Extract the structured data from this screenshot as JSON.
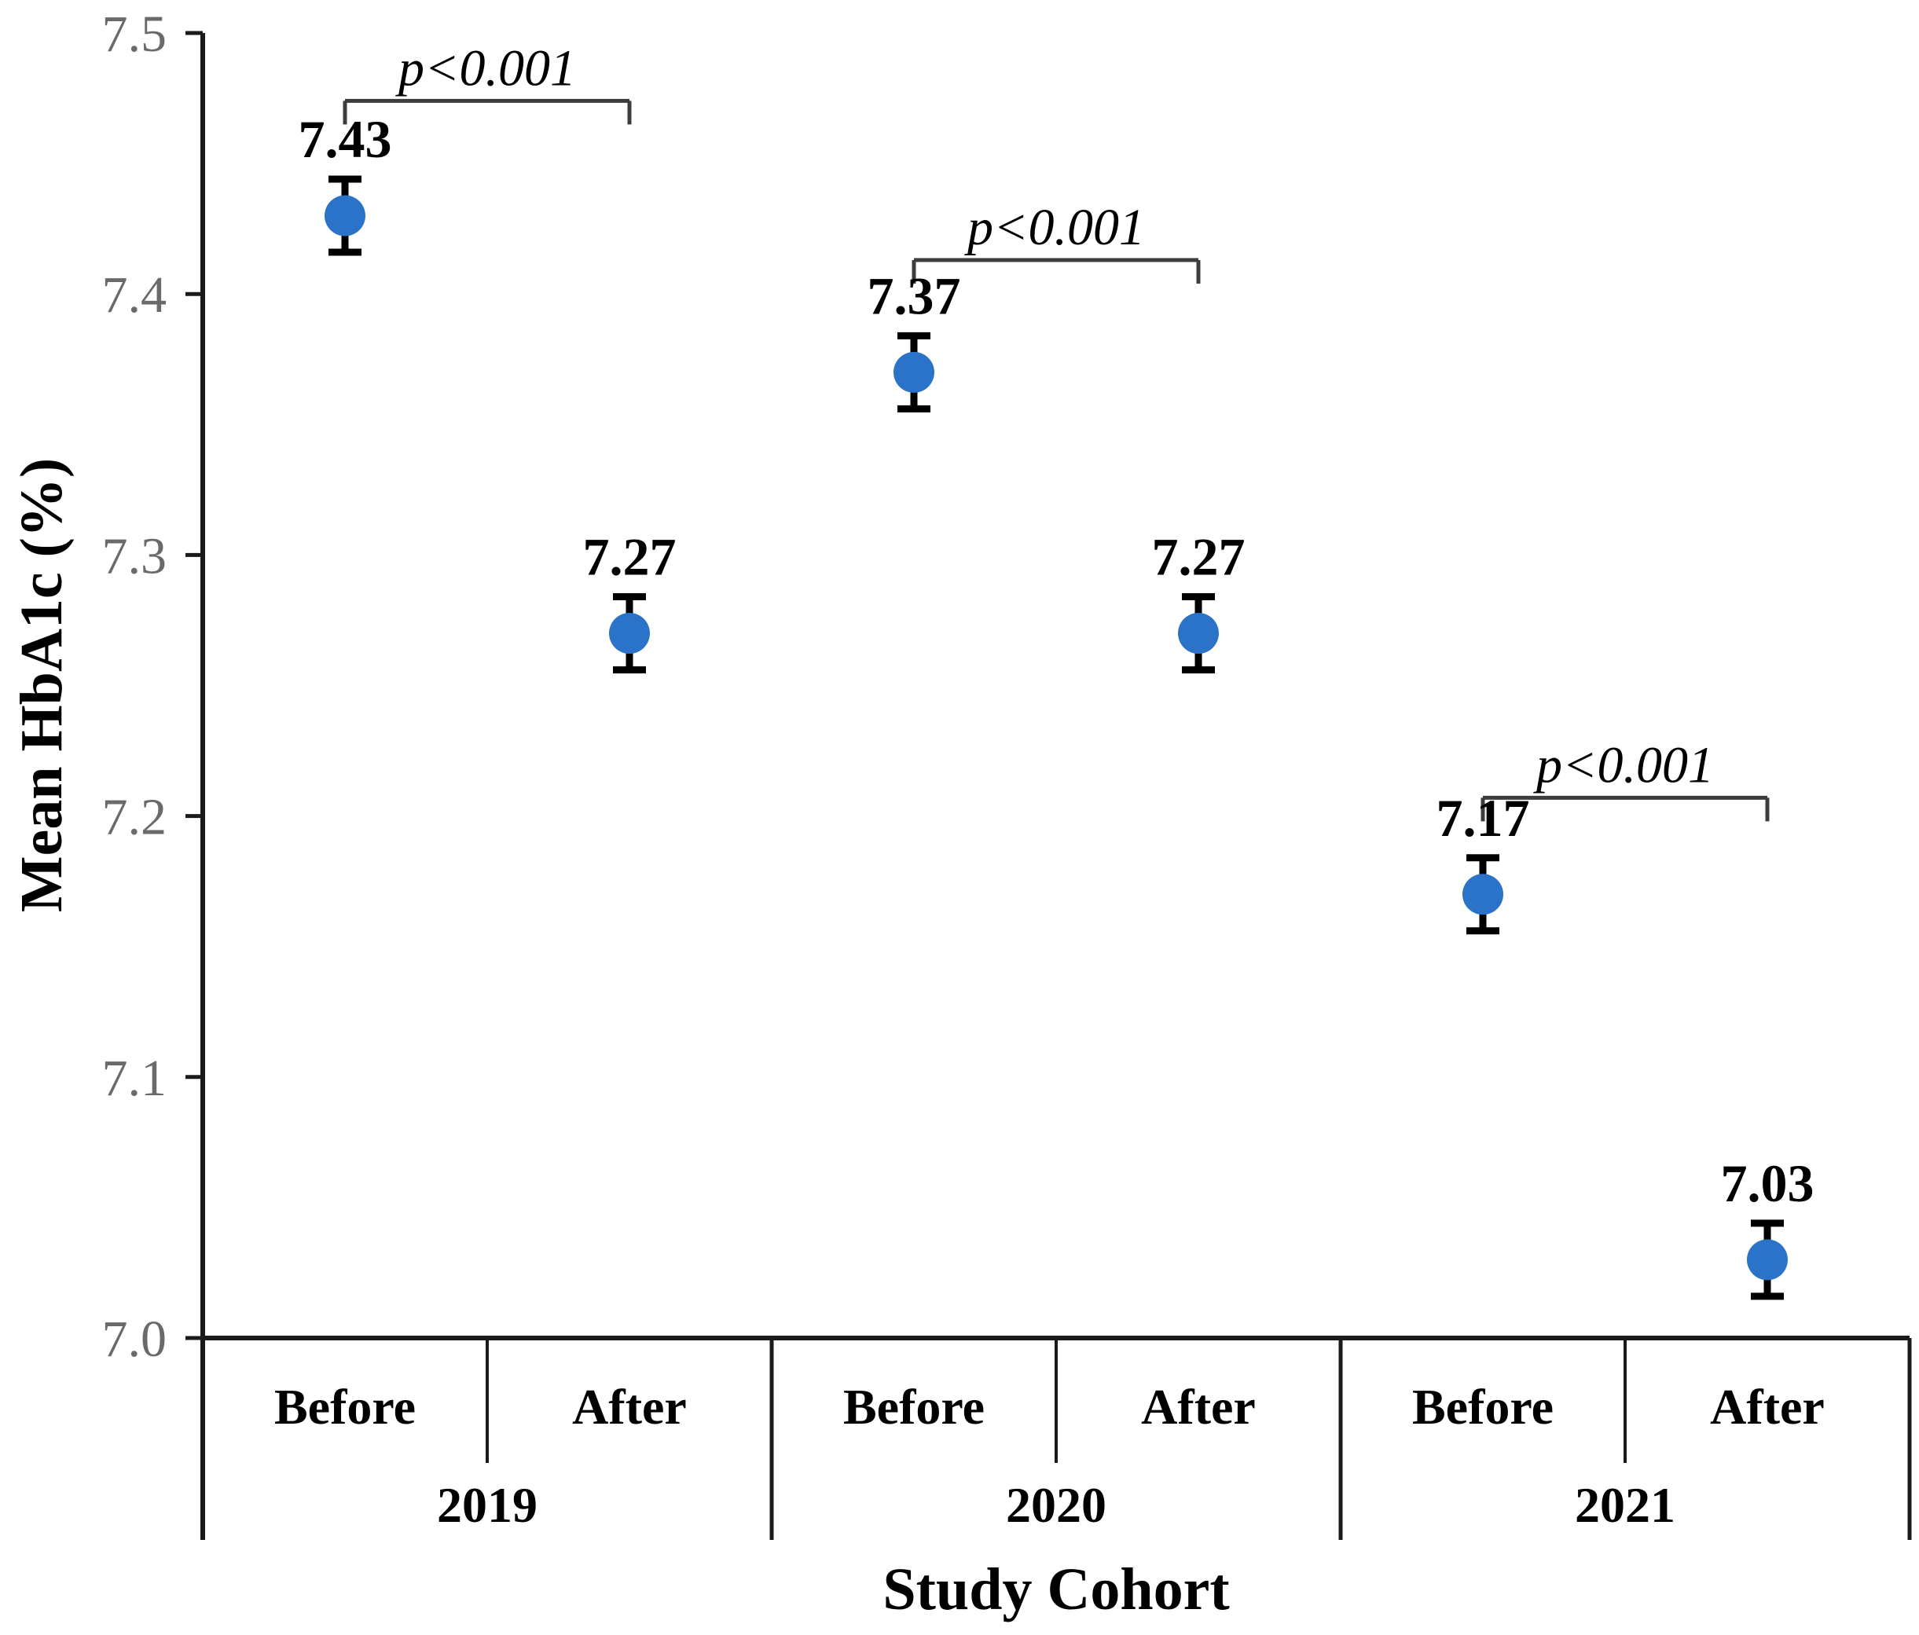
{
  "figure": {
    "background": "#ffffff"
  },
  "colors": {
    "point": "#2B73C8",
    "error_bar": "#000000",
    "axis_line": "#1a1a1a",
    "tick_label": "#6a6a6a",
    "bracket": "#3d3d3d",
    "label_text": "#000000"
  },
  "chart_data": {
    "type": "scatter",
    "title": "",
    "ylabel": "Mean HbA1c (%)",
    "xlabel": "Study Cohort",
    "ylim": [
      7.0,
      7.5
    ],
    "ytick_labels": [
      "7.0",
      "7.1",
      "7.2",
      "7.3",
      "7.4",
      "7.5"
    ],
    "yticks": [
      7.0,
      7.1,
      7.2,
      7.3,
      7.4,
      7.5
    ],
    "grid": false,
    "legend": "none",
    "x_groups": [
      "2019",
      "2020",
      "2021"
    ],
    "series": [
      {
        "name": "Mean HbA1c",
        "color": "#2B73C8",
        "points": [
          {
            "group": "2019",
            "period": "Before",
            "value": 7.43,
            "error": 0.014,
            "display": "7.43"
          },
          {
            "group": "2019",
            "period": "After",
            "value": 7.27,
            "error": 0.014,
            "display": "7.27"
          },
          {
            "group": "2020",
            "period": "Before",
            "value": 7.37,
            "error": 0.014,
            "display": "7.37"
          },
          {
            "group": "2020",
            "period": "After",
            "value": 7.27,
            "error": 0.014,
            "display": "7.27"
          },
          {
            "group": "2021",
            "period": "Before",
            "value": 7.17,
            "error": 0.014,
            "display": "7.17"
          },
          {
            "group": "2021",
            "period": "After",
            "value": 7.03,
            "error": 0.014,
            "display": "7.03"
          }
        ]
      }
    ],
    "annotations": [
      {
        "type": "bracket",
        "between": [
          0,
          1
        ],
        "label": "p<0.001",
        "y": 7.474
      },
      {
        "type": "bracket",
        "between": [
          2,
          3
        ],
        "label": "p<0.001",
        "y": 7.413
      },
      {
        "type": "bracket",
        "between": [
          4,
          5
        ],
        "label": "p<0.001",
        "y": 7.207
      }
    ]
  }
}
